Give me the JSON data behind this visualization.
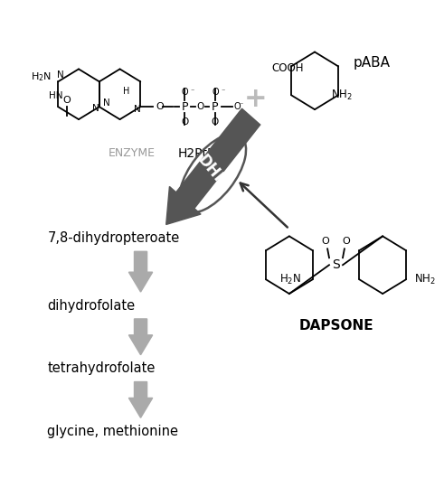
{
  "bg_color": "#ffffff",
  "text_color": "#000000",
  "gray_arrow_color": "#aaaaaa",
  "dhps_arrow_color": "#555555",
  "enzyme_color": "#999999",
  "pathway_labels": [
    "7,8-dihydropteroate",
    "dihydrofolate",
    "tetrahydrofolate",
    "glycine, methionine"
  ],
  "h2ptpp_label": "H2PtPP",
  "paba_label": "pABA",
  "dapsone_label": "DAPSONE",
  "enzyme_label": "ENZYME",
  "dhps_label": "DHPS"
}
